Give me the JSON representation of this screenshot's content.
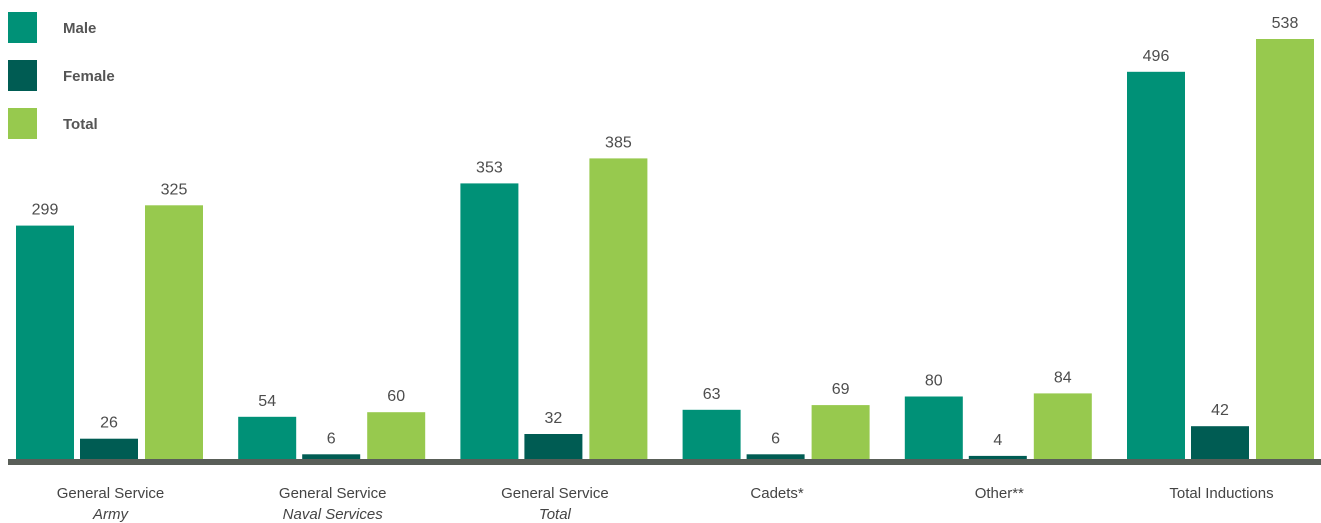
{
  "chart_data": {
    "type": "bar",
    "categories": [
      {
        "line1": "General Service",
        "line2": "Army"
      },
      {
        "line1": "General Service",
        "line2": "Naval Services"
      },
      {
        "line1": "General Service",
        "line2": "Total"
      },
      {
        "line1": "Cadets*",
        "line2": ""
      },
      {
        "line1": "Other**",
        "line2": ""
      },
      {
        "line1": "Total Inductions",
        "line2": ""
      }
    ],
    "series": [
      {
        "name": "Male",
        "color": "#009177",
        "values": [
          299,
          54,
          353,
          63,
          80,
          496
        ]
      },
      {
        "name": "Female",
        "color": "#005c53",
        "values": [
          26,
          6,
          32,
          6,
          4,
          42
        ]
      },
      {
        "name": "Total",
        "color": "#97c94e",
        "values": [
          325,
          60,
          385,
          69,
          84,
          538
        ]
      }
    ],
    "ylim": [
      0,
      538
    ],
    "legend_position": "top-left",
    "grid": false,
    "baseline_color": "#595e58"
  }
}
